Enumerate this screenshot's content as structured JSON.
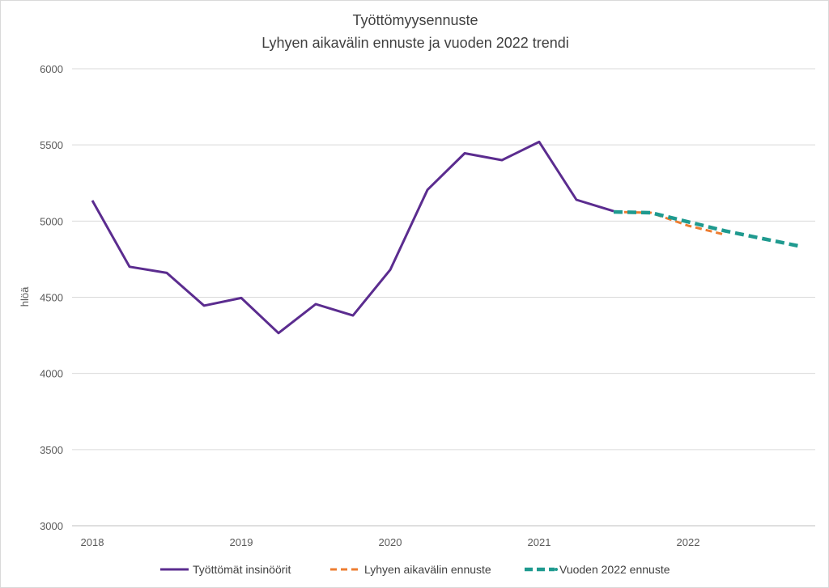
{
  "chart_data": {
    "type": "line",
    "title": "Työttömyysennuste",
    "subtitle": "Lyhyen aikavälin ennuste ja vuoden 2022 trendi",
    "ylabel": "hlöä",
    "xlabel": "",
    "ylim": [
      3000,
      6000
    ],
    "yticks": [
      3000,
      3500,
      4000,
      4500,
      5000,
      5500,
      6000
    ],
    "xticks": [
      {
        "x": 0,
        "label": "2018"
      },
      {
        "x": 4,
        "label": "2019"
      },
      {
        "x": 8,
        "label": "2020"
      },
      {
        "x": 12,
        "label": "2021"
      },
      {
        "x": 16,
        "label": "2022"
      }
    ],
    "xlim": [
      -0.3,
      19.2
    ],
    "grid": true,
    "legend_position": "bottom",
    "series": [
      {
        "name": "Työttömät insinöörit",
        "color": "#5b2c8f",
        "style": "solid",
        "x": [
          0,
          1,
          2,
          3,
          4,
          5,
          6,
          7,
          8,
          9,
          10,
          11,
          12,
          13,
          14
        ],
        "y": [
          5135,
          4700,
          4660,
          4445,
          4495,
          4265,
          4455,
          4380,
          4680,
          5205,
          5445,
          5400,
          5520,
          5140,
          5065
        ]
      },
      {
        "name": "Lyhyen aikavälin ennuste",
        "color": "#ed7d31",
        "style": "dashed",
        "x": [
          14,
          15,
          16,
          17
        ],
        "y": [
          5060,
          5055,
          4970,
          4910
        ]
      },
      {
        "name": "Vuoden 2022 ennuste",
        "color": "#1f9a8f",
        "style": "dashed-thick",
        "x": [
          14,
          15,
          16,
          17,
          18,
          19
        ],
        "y": [
          5060,
          5055,
          4995,
          4935,
          4885,
          4835
        ]
      }
    ]
  }
}
